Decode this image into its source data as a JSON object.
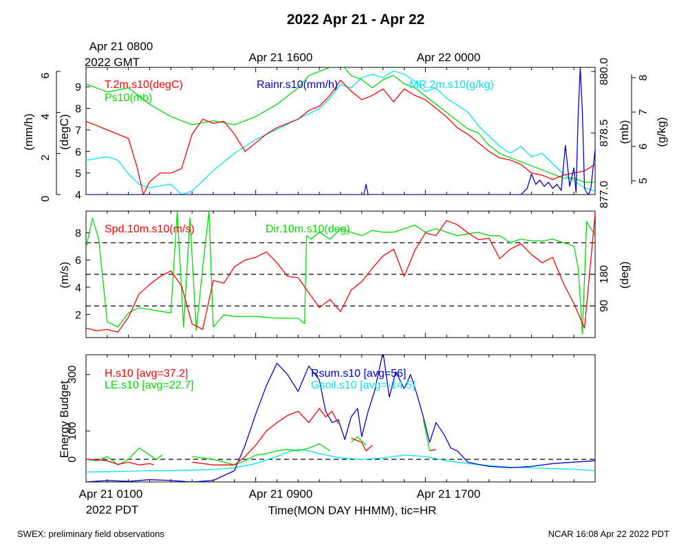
{
  "title": "2022 Apr 21 - Apr 22",
  "top_time_labels": [
    "Apr 21 0800",
    "Apr 21 1600",
    "Apr 22 0000"
  ],
  "top_time_zone": "2022 GMT",
  "bottom_time_labels": [
    "Apr 21 0100",
    "Apr 21 0900",
    "Apr 21 1700"
  ],
  "bottom_time_zone": "2022 PDT",
  "xlabel": "Time(MON DAY HHMM), tic=HR",
  "footer_left": "SWEX: preliminary field observations",
  "footer_right": "NCAR 16:08 Apr 22 2022 PDT",
  "colors": {
    "red": "#ff0000",
    "green": "#00dd00",
    "blue": "#0000cc",
    "cyan": "#00e5ee",
    "axis": "#000000"
  },
  "chart_data": [
    {
      "type": "line",
      "panel": "meteorology",
      "x_hours_pdt": [
        0,
        24
      ],
      "axes": {
        "rain": {
          "label": "(mm/h)",
          "ticks": [
            "0",
            "2",
            "4",
            "6"
          ],
          "ylim": [
            0,
            6.2
          ]
        },
        "temp": {
          "label": "(degC)",
          "ticks": [
            "4",
            "5",
            "6",
            "7",
            "8",
            "9"
          ],
          "ylim": [
            4,
            9.9
          ]
        },
        "pres": {
          "label": "(mb)",
          "ticks": [
            "877.0",
            "878.5",
            "880.0"
          ],
          "ylim": [
            877.0,
            880.1
          ]
        },
        "mr": {
          "label": "(g/kg)",
          "ticks": [
            "5",
            "6",
            "7",
            "8"
          ],
          "ylim": [
            4.6,
            8.3
          ]
        }
      },
      "series": [
        {
          "name": "T.2m.s10(degC)",
          "color": "#ff0000",
          "axis": "temp",
          "x": [
            0,
            1,
            2,
            2.4,
            2.7,
            3,
            3.5,
            4,
            4.5,
            5,
            5.5,
            6,
            6.5,
            7,
            7.5,
            8,
            8.5,
            9,
            9.5,
            10,
            10.5,
            11,
            11.5,
            12,
            12.5,
            13,
            13.5,
            14,
            14.5,
            15,
            15.5,
            16,
            16.5,
            17,
            17.5,
            18,
            18.5,
            19,
            19.5,
            20,
            20.5,
            21,
            21.5,
            22,
            22.5,
            23,
            23.5,
            24
          ],
          "y": [
            7.4,
            7.0,
            6.6,
            5.3,
            4.0,
            4.6,
            5.0,
            5.0,
            5.2,
            6.8,
            7.5,
            7.3,
            7.4,
            6.8,
            6.0,
            6.4,
            6.8,
            7.1,
            7.3,
            7.5,
            7.9,
            8.1,
            8.6,
            9.3,
            8.8,
            8.4,
            8.6,
            8.9,
            8.3,
            8.9,
            8.6,
            8.4,
            8.0,
            7.6,
            7.1,
            6.8,
            6.4,
            6.0,
            5.7,
            5.6,
            5.4,
            5.0,
            4.9,
            4.7,
            4.9,
            5.0,
            5.1,
            5.4
          ]
        },
        {
          "name": "Ps10(mb)",
          "color": "#00dd00",
          "axis": "pres",
          "x": [
            0,
            1,
            2,
            3,
            4,
            5,
            6,
            7,
            8,
            9,
            10,
            10.5,
            11,
            11.5,
            12,
            12.5,
            13,
            13.5,
            14,
            14.5,
            15,
            15.5,
            16,
            16.5,
            17,
            17.5,
            18,
            18.5,
            19,
            19.5,
            20,
            20.5,
            21,
            21.5,
            22,
            22.5,
            23,
            23.5,
            24
          ],
          "y": [
            879.7,
            879.5,
            879.6,
            879.2,
            878.9,
            878.7,
            878.8,
            878.7,
            878.9,
            879.2,
            879.6,
            879.9,
            880.0,
            880.1,
            880.2,
            879.9,
            879.8,
            879.6,
            879.8,
            879.9,
            879.7,
            879.6,
            879.4,
            879.2,
            879.0,
            878.8,
            878.6,
            878.5,
            878.2,
            878.0,
            877.9,
            877.8,
            877.7,
            877.6,
            877.5,
            877.4,
            877.4,
            877.3,
            877.3
          ]
        },
        {
          "name": "Rainr.s10(mm/h)",
          "color": "#0000cc",
          "axis": "rain",
          "x": [
            0,
            13.1,
            13.2,
            13.3,
            20.5,
            20.8,
            21,
            21.2,
            21.4,
            21.6,
            21.8,
            22,
            22.2,
            22.4,
            22.6,
            22.8,
            23,
            23.1,
            23.2,
            23.3,
            23.4,
            23.5,
            23.6,
            23.7,
            23.8,
            24
          ],
          "y": [
            0,
            0,
            0.5,
            0,
            0,
            0.3,
            1.0,
            0.5,
            0.7,
            0.4,
            0.6,
            0.3,
            0.5,
            0.2,
            2.4,
            0.4,
            1.3,
            0.1,
            3.8,
            6.2,
            4.0,
            0.3,
            0.1,
            0.0,
            0.3,
            2.2
          ]
        },
        {
          "name": "MR.2m.s10(g/kg)",
          "color": "#00e5ee",
          "axis": "mr",
          "x": [
            0,
            1,
            1.5,
            2,
            2.5,
            3,
            4,
            4.5,
            5,
            5.5,
            6,
            7,
            8,
            9,
            10,
            11,
            11.5,
            12,
            12.5,
            13,
            13.5,
            14,
            14.5,
            15,
            15.5,
            16,
            16.5,
            17,
            17.5,
            18,
            18.5,
            19,
            19.5,
            20,
            20.5,
            21,
            21.5,
            22,
            22.5,
            23,
            23.5,
            24
          ],
          "y": [
            5.6,
            5.7,
            5.6,
            5.2,
            4.9,
            4.8,
            4.9,
            4.6,
            4.7,
            5.0,
            5.3,
            5.8,
            6.2,
            6.5,
            6.8,
            7.1,
            7.4,
            7.8,
            7.7,
            8.0,
            8.1,
            8.0,
            8.2,
            8.1,
            7.9,
            7.6,
            7.7,
            7.4,
            7.2,
            7.0,
            6.6,
            6.3,
            6.0,
            5.8,
            6.0,
            5.7,
            5.8,
            5.5,
            5.2,
            5.0,
            4.8,
            4.7
          ]
        }
      ]
    },
    {
      "type": "line",
      "panel": "wind",
      "x_hours_pdt": [
        0,
        24
      ],
      "axes": {
        "spd": {
          "label": "(m/s)",
          "ticks": [
            "2",
            "4",
            "6",
            "8"
          ],
          "ylim": [
            0.3,
            9.6
          ]
        },
        "dir": {
          "label": "(deg)",
          "ticks": [
            "90",
            "180"
          ],
          "ylim": [
            0,
            360
          ]
        }
      },
      "reference_lines_deg": [
        90,
        180,
        270
      ],
      "series": [
        {
          "name": "Spd.10m.s10(m/s)",
          "color": "#ff0000",
          "axis": "spd",
          "x": [
            0,
            0.5,
            1,
            1.5,
            2,
            2.5,
            3,
            3.5,
            4,
            4.5,
            5,
            5.5,
            6,
            6.5,
            7,
            7.5,
            8,
            8.5,
            9,
            9.5,
            10,
            10.5,
            11,
            11.5,
            12,
            12.5,
            13,
            13.5,
            14,
            14.5,
            15,
            15.5,
            16,
            16.5,
            17,
            17.5,
            18,
            18.5,
            19,
            19.5,
            20,
            20.5,
            21,
            21.5,
            22,
            22.5,
            23,
            23.5,
            24
          ],
          "y": [
            1.0,
            0.8,
            0.9,
            0.7,
            1.8,
            3.5,
            4.2,
            4.8,
            5.2,
            4.1,
            1.3,
            0.9,
            4.5,
            4.3,
            5.5,
            6.0,
            6.2,
            6.6,
            5.8,
            4.8,
            4.7,
            3.6,
            2.5,
            3.1,
            2.2,
            3.8,
            4.4,
            5.4,
            6.3,
            6.8,
            4.8,
            6.7,
            8.0,
            7.8,
            8.9,
            8.6,
            8.0,
            7.5,
            7.6,
            6.1,
            6.8,
            7.2,
            6.4,
            5.8,
            6.2,
            4.3,
            2.8,
            1.0,
            9.4
          ]
        },
        {
          "name": "Dir.10m.s10(deg)",
          "color": "#00dd00",
          "axis": "dir",
          "x": [
            0,
            0.3,
            0.6,
            1,
            1.5,
            2,
            2.5,
            3,
            3.5,
            4,
            4.3,
            4.6,
            4.9,
            5.2,
            5.5,
            5.8,
            6,
            6.5,
            7,
            8,
            9,
            9.5,
            10,
            10.3,
            10.4,
            10.6,
            11,
            11.5,
            12,
            12.5,
            13,
            13.5,
            14,
            14.5,
            15,
            15.5,
            16,
            16.5,
            17,
            17.5,
            18,
            18.5,
            19,
            19.5,
            20,
            20.5,
            21,
            21.5,
            22,
            22.5,
            23,
            23.2,
            23.4,
            23.6,
            24
          ],
          "y": [
            255,
            340,
            280,
            45,
            30,
            70,
            85,
            80,
            75,
            70,
            360,
            30,
            340,
            20,
            200,
            360,
            30,
            65,
            60,
            60,
            55,
            55,
            55,
            40,
            290,
            280,
            300,
            280,
            310,
            300,
            290,
            305,
            300,
            300,
            310,
            320,
            300,
            310,
            300,
            290,
            295,
            300,
            290,
            290,
            270,
            280,
            275,
            275,
            280,
            270,
            260,
            200,
            10,
            330,
            290
          ]
        }
      ]
    },
    {
      "type": "line",
      "panel": "energy",
      "x_hours_pdt": [
        0,
        24
      ],
      "ylabel": "Energy Budget",
      "ticks": [
        "0",
        "100",
        "300"
      ],
      "ylim": [
        -80,
        370
      ],
      "series": [
        {
          "name": "H.s10 [avg=37.2]",
          "color": "#ff0000",
          "segments": [
            {
              "x": [
                0,
                0.5,
                1,
                1.5,
                2,
                2.5,
                3,
                3.2
              ],
              "y": [
                0,
                -2,
                -5,
                -18,
                -10,
                -20,
                -15,
                -20
              ]
            },
            {
              "x": [
                5,
                6,
                7,
                7.5,
                8,
                8.5,
                9,
                9.5,
                10,
                10.5,
                11,
                11.3,
                11.6,
                11.9
              ],
              "y": [
                -10,
                -20,
                -20,
                10,
                50,
                100,
                130,
                155,
                170,
                130,
                180,
                150,
                170,
                125
              ]
            },
            {
              "x": [
                12.5,
                13,
                13.2,
                13.5
              ],
              "y": [
                75,
                60,
                30,
                50
              ]
            },
            {
              "x": [
                16.2,
                16.5
              ],
              "y": [
                30,
                35
              ]
            }
          ]
        },
        {
          "name": "LE.s10 [avg=22.7]",
          "color": "#00dd00",
          "segments": [
            {
              "x": [
                0,
                0.5,
                1,
                1.5,
                2,
                2.5,
                3.3,
                3.6
              ],
              "y": [
                0,
                -5,
                10,
                -20,
                0,
                40,
                0,
                15
              ]
            },
            {
              "x": [
                5,
                6,
                7,
                7.5,
                8,
                8.5,
                9,
                9.5,
                10,
                10.5,
                11,
                11.5
              ],
              "y": [
                10,
                0,
                -20,
                -5,
                15,
                20,
                30,
                35,
                30,
                40,
                55,
                30
              ]
            },
            {
              "x": [
                12.5,
                12.8,
                13.2
              ],
              "y": [
                60,
                80,
                50
              ]
            },
            {
              "x": [
                15.9,
                16.2
              ],
              "y": [
                140,
                30
              ]
            }
          ]
        },
        {
          "name": "Rsum.s10 [avg=56]",
          "color": "#0000cc",
          "segments": [
            {
              "x": [
                0,
                1,
                2,
                3,
                4,
                5,
                6,
                7,
                7.5,
                8,
                8.5,
                9,
                9.5,
                10,
                10.5,
                11,
                11.3,
                11.6,
                11.9,
                12.2,
                12.5,
                12.8,
                13,
                13.3,
                13.6,
                14,
                14.3,
                14.6,
                15,
                15.3,
                15.6,
                15.9,
                16.2,
                16.5,
                16.9,
                17.2,
                17.5,
                18,
                18.5,
                19,
                20,
                21,
                22,
                23,
                24
              ],
              "y": [
                -80,
                -75,
                -78,
                -72,
                -75,
                -80,
                -75,
                -40,
                50,
                160,
                260,
                340,
                300,
                240,
                330,
                280,
                170,
                130,
                140,
                70,
                150,
                180,
                80,
                170,
                240,
                380,
                220,
                310,
                250,
                300,
                230,
                150,
                60,
                130,
                85,
                40,
                30,
                -10,
                -18,
                -25,
                -30,
                -25,
                -15,
                -10,
                -5
              ]
            }
          ]
        },
        {
          "name": "Gsoil.s10 [avg=-14.5]",
          "color": "#00e5ee",
          "segments": [
            {
              "x": [
                0,
                1,
                2,
                3,
                4,
                5,
                6,
                7,
                8,
                9,
                9.5,
                10,
                10.5,
                11,
                12,
                13,
                14,
                15,
                16,
                17,
                18,
                19,
                20,
                21,
                22,
                23,
                24
              ],
              "y": [
                -45,
                -44,
                -42,
                -40,
                -40,
                -38,
                -36,
                -30,
                -15,
                10,
                25,
                35,
                30,
                20,
                5,
                0,
                5,
                15,
                10,
                -5,
                -15,
                -22,
                -28,
                -30,
                -33,
                -35,
                -40
              ]
            }
          ]
        }
      ]
    }
  ]
}
